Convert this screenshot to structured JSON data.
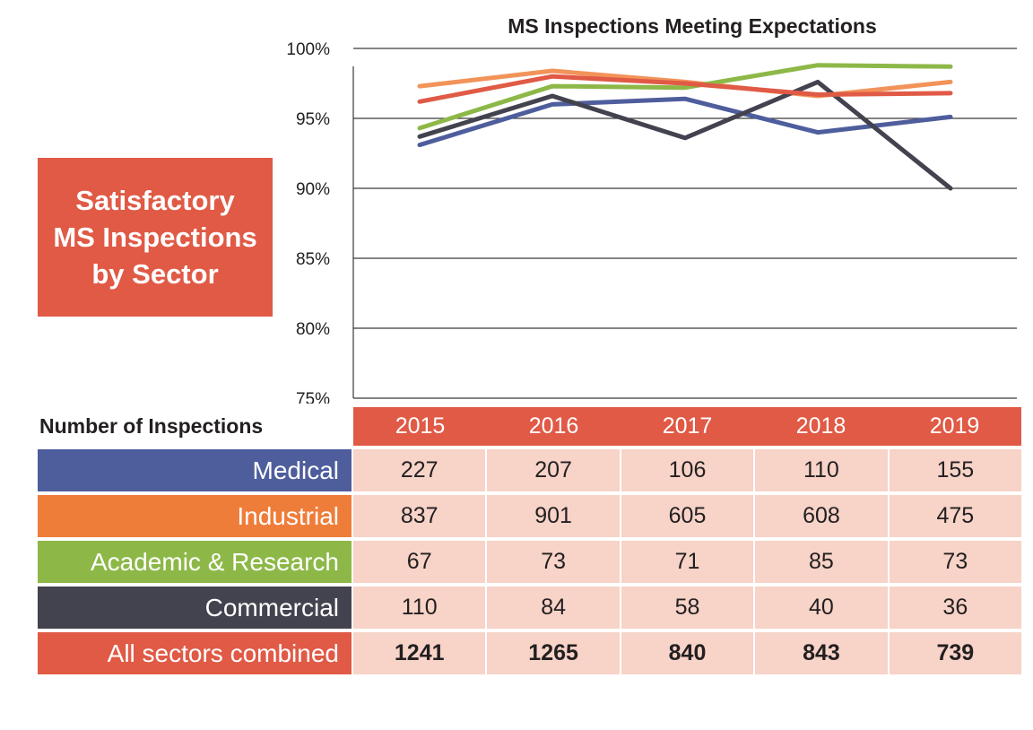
{
  "side_box": {
    "text": "Satisfactory\nMS Inspections\nby Sector"
  },
  "table": {
    "label": "Number of Inspections",
    "years": [
      "2015",
      "2016",
      "2017",
      "2018",
      "2019"
    ],
    "rows": [
      {
        "label": "Medical",
        "color": "#4e5d9c",
        "values": [
          "227",
          "207",
          "106",
          "110",
          "155"
        ]
      },
      {
        "label": "Industrial",
        "color": "#ef7d3a",
        "values": [
          "837",
          "901",
          "605",
          "608",
          "475"
        ]
      },
      {
        "label": "Academic & Research",
        "color": "#8db848",
        "values": [
          "67",
          "73",
          "71",
          "85",
          "73"
        ]
      },
      {
        "label": "Commercial",
        "color": "#43434f",
        "values": [
          "110",
          "84",
          "58",
          "40",
          "36"
        ]
      },
      {
        "label": "All sectors combined",
        "color": "#e05a46",
        "values": [
          "1241",
          "1265",
          "840",
          "843",
          "739"
        ]
      }
    ]
  },
  "chart_data": {
    "type": "line",
    "title": "MS Inspections Meeting Expectations",
    "x": [
      "2015",
      "2016",
      "2017",
      "2018",
      "2019"
    ],
    "yticks": [
      "100%",
      "95%",
      "90%",
      "85%",
      "80%",
      "75%"
    ],
    "ylim": [
      75,
      100
    ],
    "grid": true,
    "series": [
      {
        "name": "Industrial",
        "color": "#f2935a",
        "values": [
          97.3,
          98.4,
          97.6,
          96.6,
          97.6
        ]
      },
      {
        "name": "Academic & Research",
        "color": "#8db848",
        "values": [
          94.3,
          97.3,
          97.2,
          98.8,
          98.7
        ]
      },
      {
        "name": "Medical",
        "color": "#4e5d9c",
        "values": [
          93.1,
          96.0,
          96.4,
          94.0,
          95.1
        ]
      },
      {
        "name": "Commercial",
        "color": "#43434f",
        "values": [
          93.7,
          96.6,
          93.6,
          97.6,
          90.0
        ]
      },
      {
        "name": "All sectors combined",
        "color": "#e05a46",
        "values": [
          96.2,
          98.0,
          97.5,
          96.7,
          96.8
        ]
      }
    ]
  }
}
